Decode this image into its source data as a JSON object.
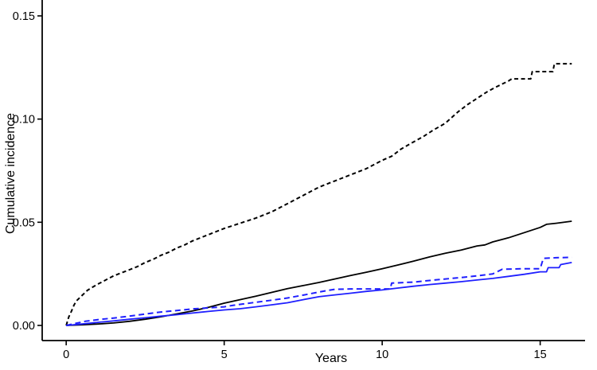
{
  "chart_data": {
    "type": "line",
    "title": "",
    "xlabel": "Years",
    "ylabel": "Cumulative incidence",
    "xlim": [
      -0.76,
      16.42
    ],
    "ylim": [
      -0.00733,
      0.1577
    ],
    "grid": false,
    "legend": "none",
    "x_ticks": {
      "values": [
        0,
        5,
        10,
        15
      ],
      "labels": [
        "0",
        "5",
        "10",
        "15"
      ]
    },
    "y_ticks": {
      "values": [
        0,
        0.05,
        0.1,
        0.15
      ],
      "labels": [
        "0.00",
        "0.05",
        "0.10",
        "0.15"
      ]
    },
    "axis_color": "#000000",
    "series": [
      {
        "name": "black-dashed",
        "color": "#000000",
        "style": "dashed",
        "x": [
          0,
          0.08,
          0.17,
          0.25,
          0.33,
          0.5,
          0.67,
          0.83,
          1.0,
          1.25,
          1.5,
          1.75,
          2.0,
          2.25,
          2.5,
          2.75,
          3.0,
          3.25,
          3.5,
          3.75,
          4.0,
          4.25,
          4.5,
          4.75,
          5.0,
          5.5,
          6.0,
          6.5,
          7.0,
          7.5,
          8.0,
          8.5,
          9.0,
          9.5,
          10.0,
          10.3,
          10.6,
          11.0,
          11.3,
          11.6,
          12.0,
          12.4,
          12.7,
          13.0,
          13.3,
          13.6,
          14.0,
          14.1,
          14.7,
          14.75,
          15.4,
          15.45,
          16.0
        ],
        "y": [
          0,
          0.004,
          0.007,
          0.01,
          0.012,
          0.0145,
          0.017,
          0.0185,
          0.02,
          0.022,
          0.024,
          0.0255,
          0.027,
          0.0285,
          0.0305,
          0.032,
          0.034,
          0.0355,
          0.0375,
          0.039,
          0.041,
          0.0425,
          0.044,
          0.0455,
          0.047,
          0.0495,
          0.052,
          0.055,
          0.059,
          0.063,
          0.067,
          0.07,
          0.073,
          0.076,
          0.08,
          0.082,
          0.0855,
          0.089,
          0.0915,
          0.0945,
          0.098,
          0.1035,
          0.107,
          0.11,
          0.113,
          0.1155,
          0.1185,
          0.1195,
          0.1195,
          0.123,
          0.123,
          0.1268,
          0.1268
        ]
      },
      {
        "name": "black-solid",
        "color": "#000000",
        "style": "solid",
        "x": [
          0,
          0.5,
          1,
          1.5,
          2,
          2.5,
          3,
          3.5,
          4,
          4.5,
          5,
          5.5,
          6,
          6.5,
          7,
          7.5,
          8,
          8.5,
          9,
          9.5,
          10,
          10.5,
          11,
          11.5,
          12,
          12.5,
          13,
          13.25,
          13.5,
          14,
          14.5,
          15,
          15.2,
          15.5,
          16
        ],
        "y": [
          0,
          0.0003,
          0.0007,
          0.0012,
          0.002,
          0.003,
          0.0042,
          0.0056,
          0.007,
          0.0088,
          0.0108,
          0.0125,
          0.0142,
          0.016,
          0.0178,
          0.0193,
          0.0208,
          0.0225,
          0.0242,
          0.0258,
          0.0275,
          0.0293,
          0.0312,
          0.0332,
          0.035,
          0.0365,
          0.0385,
          0.039,
          0.0405,
          0.0425,
          0.045,
          0.0475,
          0.049,
          0.0495,
          0.0505
        ]
      },
      {
        "name": "blue-dashed",
        "color": "#1f1fff",
        "style": "dashed",
        "x": [
          0,
          0.3,
          0.6,
          1,
          1.5,
          2,
          2.5,
          3,
          3.5,
          4,
          4.5,
          5,
          5.3,
          5.6,
          6,
          6.5,
          7,
          7.5,
          8,
          8.3,
          8.5,
          9,
          10.25,
          10.3,
          11,
          11.5,
          12,
          12.5,
          13,
          13.5,
          13.8,
          14.5,
          15.0,
          15.1,
          15.5,
          16
        ],
        "y": [
          0,
          0.001,
          0.002,
          0.0028,
          0.0036,
          0.0045,
          0.0055,
          0.0065,
          0.0072,
          0.008,
          0.0085,
          0.009,
          0.0098,
          0.0104,
          0.0112,
          0.0122,
          0.0133,
          0.0147,
          0.0162,
          0.017,
          0.0175,
          0.0177,
          0.0177,
          0.0205,
          0.021,
          0.0218,
          0.0225,
          0.0232,
          0.024,
          0.025,
          0.0272,
          0.0275,
          0.0275,
          0.0325,
          0.0328,
          0.033
        ]
      },
      {
        "name": "blue-solid",
        "color": "#1f1fff",
        "style": "solid",
        "x": [
          0,
          0.5,
          1,
          1.5,
          2,
          2.5,
          3,
          3.5,
          4,
          4.5,
          5,
          5.5,
          6,
          6.5,
          7,
          7.5,
          8,
          8.5,
          9,
          9.5,
          10,
          10.5,
          11,
          11.5,
          12,
          12.5,
          13,
          13.5,
          14,
          14.5,
          15,
          15.2,
          15.25,
          15.6,
          15.65,
          16
        ],
        "y": [
          0,
          0.0007,
          0.0015,
          0.0022,
          0.003,
          0.0037,
          0.0045,
          0.0052,
          0.006,
          0.0068,
          0.0075,
          0.0081,
          0.009,
          0.01,
          0.011,
          0.0125,
          0.0139,
          0.0148,
          0.0156,
          0.0165,
          0.0172,
          0.0181,
          0.019,
          0.0198,
          0.0205,
          0.0212,
          0.022,
          0.0228,
          0.0238,
          0.0248,
          0.026,
          0.026,
          0.028,
          0.028,
          0.0295,
          0.0305
        ]
      }
    ]
  }
}
